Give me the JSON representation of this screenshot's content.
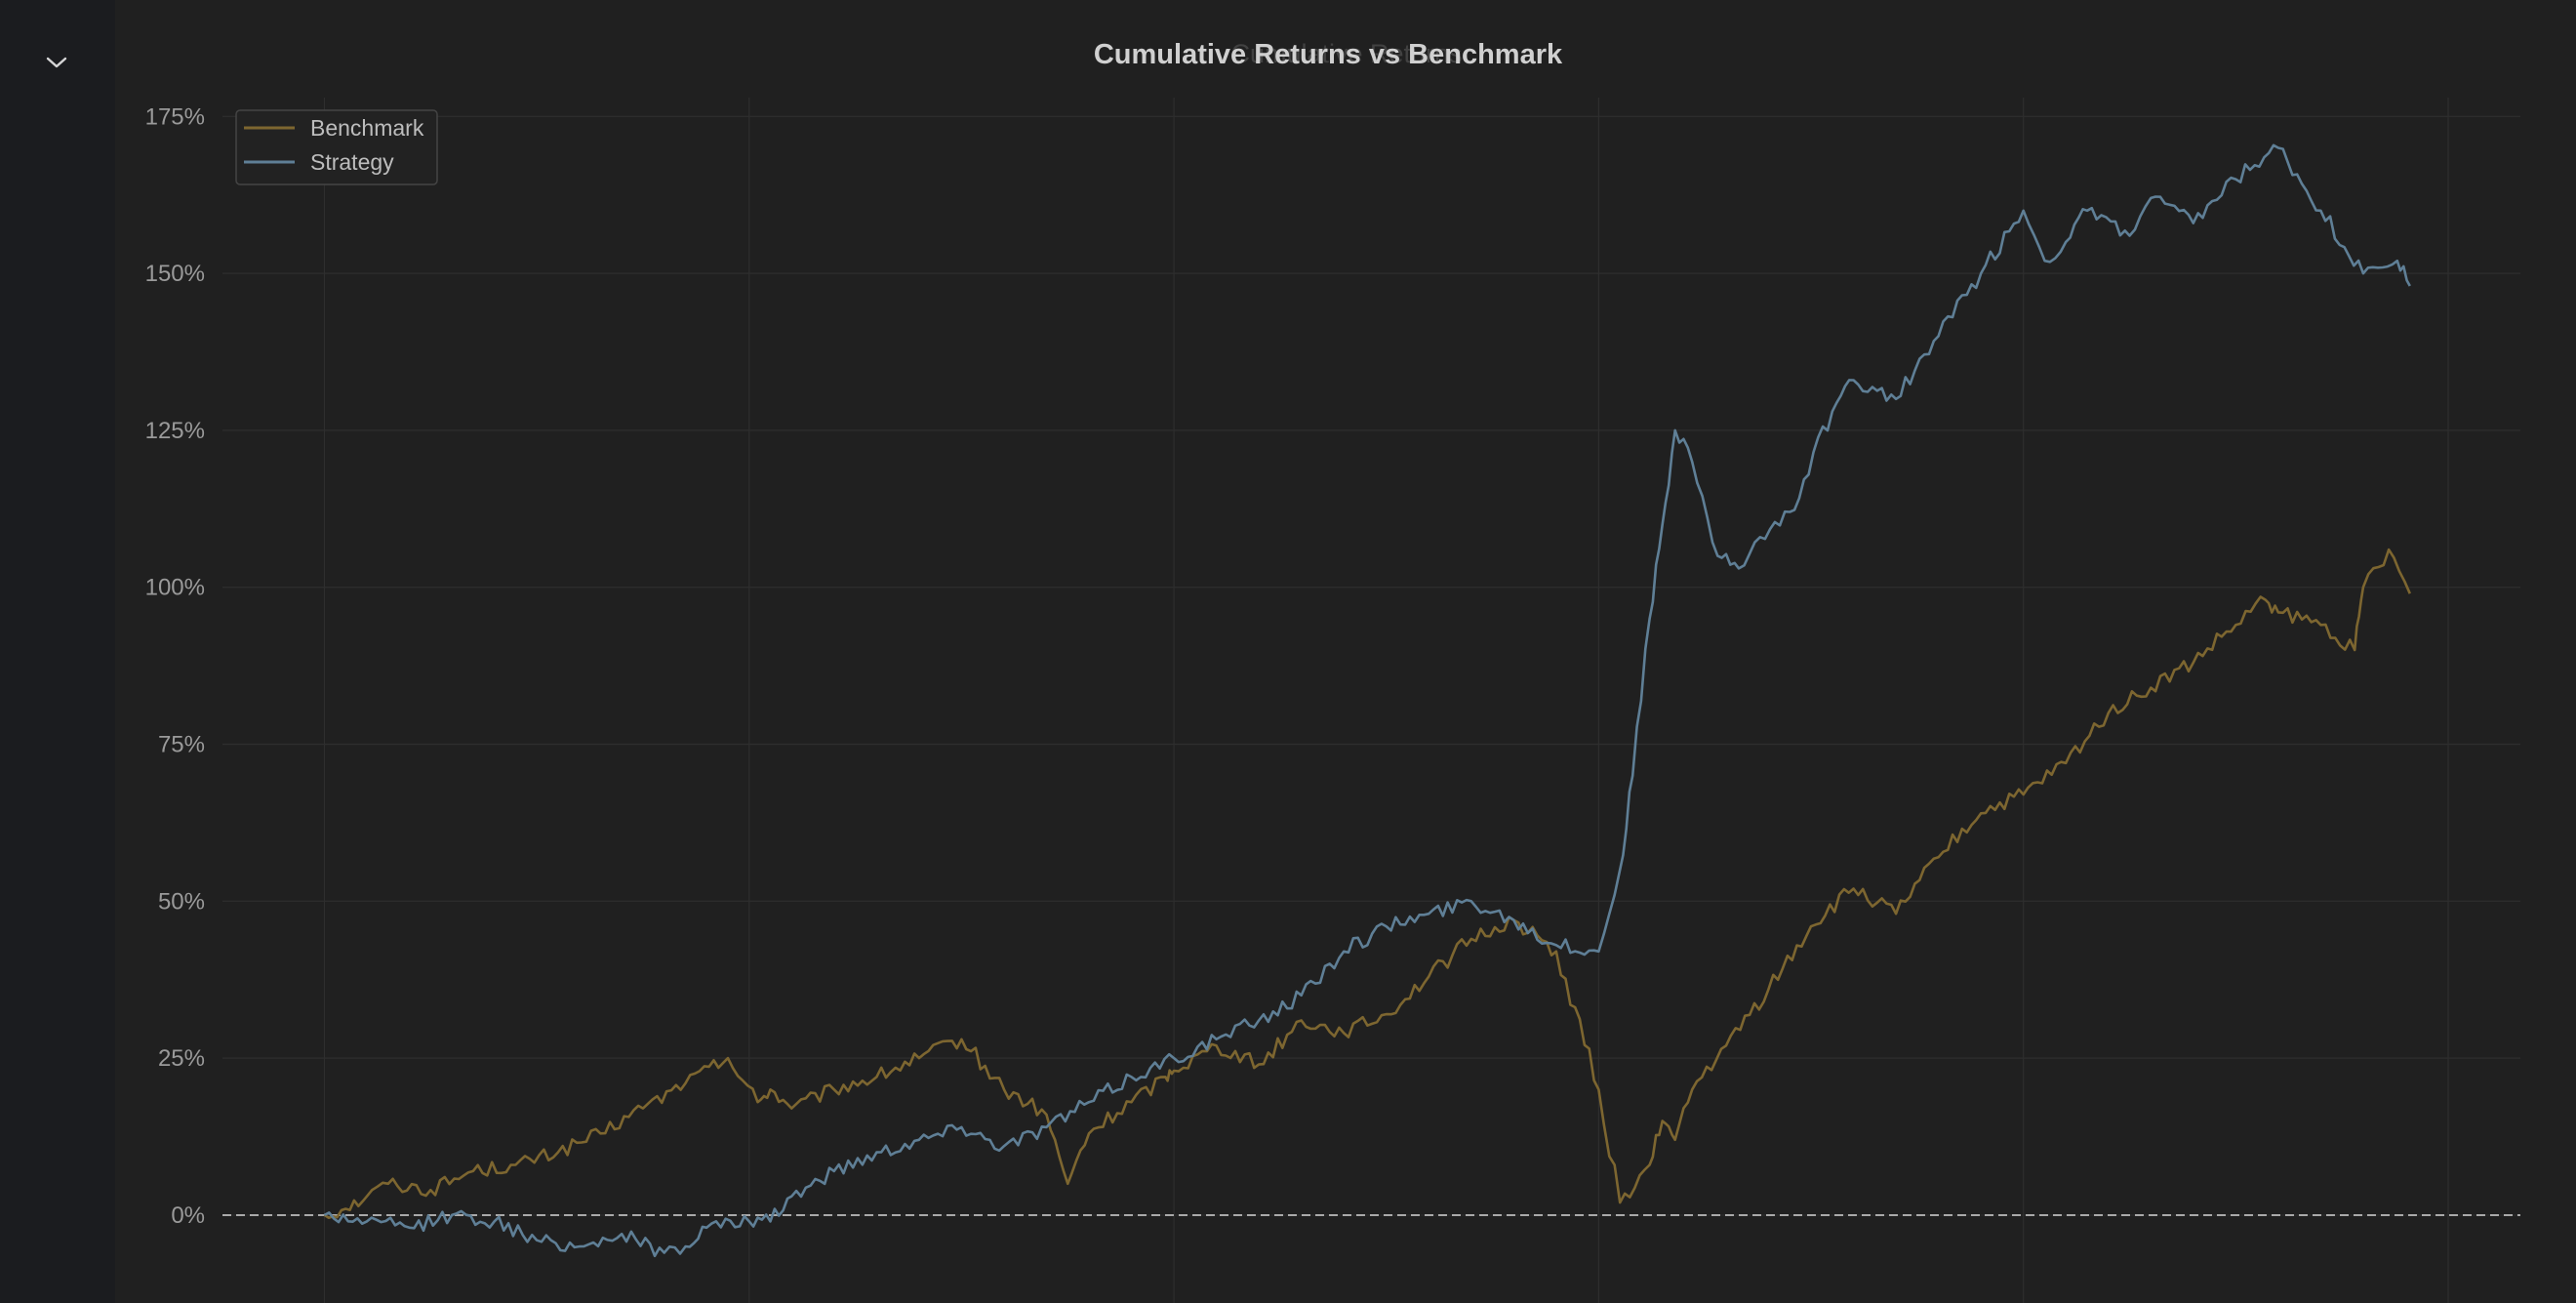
{
  "page": {
    "collapse_icon": "chevron-down-icon"
  },
  "colors": {
    "background": "#1b1c1f",
    "panel": "#202020",
    "grid": "#2e2e2e",
    "benchmark": "#7d6630",
    "strategy": "#5f7f96",
    "zero_line": "#a9a9a9"
  },
  "chart_data": {
    "type": "line",
    "title": "Cumulative Returns vs Benchmark",
    "ghost_title": "Cumulative Returns",
    "xlabel": "",
    "ylabel": "",
    "ylim": [
      -14,
      178
    ],
    "xlim": [
      -0.24,
      5.17
    ],
    "y_ticks": [
      0,
      25,
      50,
      75,
      100,
      125,
      150,
      175
    ],
    "y_tick_labels": [
      "0%",
      "25%",
      "50%",
      "75%",
      "100%",
      "125%",
      "150%",
      "175%"
    ],
    "x_gridlines": [
      0,
      1,
      2,
      3,
      4,
      5
    ],
    "grid": true,
    "legend_position": "top-left",
    "reference_line": {
      "y": 0,
      "style": "dashed"
    },
    "series": [
      {
        "name": "Benchmark",
        "x": [
          0,
          0.05,
          0.1,
          0.15,
          0.25,
          0.35,
          0.45,
          0.55,
          0.65,
          0.75,
          0.85,
          0.95,
          1.02,
          1.05,
          1.1,
          1.2,
          1.3,
          1.4,
          1.5,
          1.6,
          1.7,
          1.75,
          1.8,
          1.9,
          1.98,
          2.0,
          2.1,
          2.2,
          2.3,
          2.4,
          2.5,
          2.6,
          2.7,
          2.8,
          2.9,
          3.0,
          3.05,
          3.12,
          3.15,
          3.18,
          3.22,
          3.3,
          3.4,
          3.5,
          3.6,
          3.7,
          3.8,
          3.9,
          4.0,
          4.1,
          4.2,
          4.3,
          4.4,
          4.5,
          4.57,
          4.6,
          4.7,
          4.78,
          4.8,
          4.86,
          4.91
        ],
        "y": [
          0,
          1,
          3,
          5,
          4,
          7,
          8,
          10,
          13,
          17,
          21,
          25,
          18,
          20,
          17,
          20,
          22,
          25,
          28,
          20,
          16,
          5,
          13,
          18,
          22,
          23,
          27,
          24,
          31,
          29,
          32,
          38,
          44,
          47,
          42,
          20,
          2,
          8,
          15,
          12,
          20,
          27,
          36,
          46,
          52,
          48,
          57,
          64,
          67,
          72,
          80,
          84,
          88,
          94,
          98,
          96,
          94,
          90,
          100,
          106,
          99
        ],
        "color": "#7d6630"
      },
      {
        "name": "Strategy",
        "x": [
          0,
          0.1,
          0.2,
          0.3,
          0.4,
          0.5,
          0.6,
          0.7,
          0.8,
          0.85,
          0.9,
          1.0,
          1.05,
          1.1,
          1.2,
          1.3,
          1.4,
          1.5,
          1.6,
          1.7,
          1.8,
          1.9,
          2.0,
          2.1,
          2.2,
          2.3,
          2.4,
          2.5,
          2.6,
          2.7,
          2.8,
          2.9,
          3.0,
          3.05,
          3.08,
          3.12,
          3.15,
          3.18,
          3.22,
          3.28,
          3.33,
          3.38,
          3.45,
          3.55,
          3.6,
          3.7,
          3.8,
          3.9,
          4.0,
          4.05,
          4.1,
          4.15,
          4.25,
          4.3,
          4.4,
          4.5,
          4.6,
          4.7,
          4.8,
          4.88,
          4.91
        ],
        "y": [
          0,
          -1,
          -2,
          0,
          -1,
          -4,
          -5,
          -3,
          -6,
          -5,
          -2,
          -1,
          -1,
          3,
          7,
          10,
          12,
          14,
          11,
          14,
          18,
          22,
          25,
          28,
          31,
          35,
          42,
          46,
          48,
          50,
          47,
          43,
          42,
          55,
          70,
          95,
          110,
          125,
          120,
          105,
          103,
          108,
          112,
          128,
          133,
          130,
          140,
          150,
          160,
          152,
          155,
          160,
          156,
          162,
          158,
          165,
          170,
          160,
          150,
          152,
          148
        ],
        "color": "#5f7f96"
      }
    ]
  }
}
